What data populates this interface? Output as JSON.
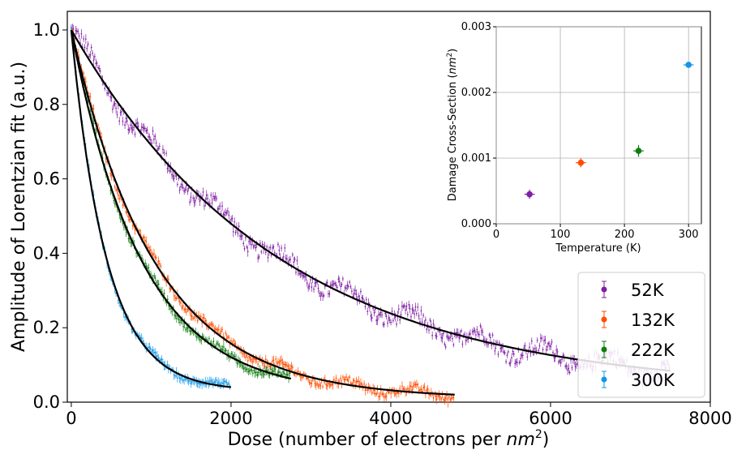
{
  "chart_data": [
    {
      "type": "scatter",
      "xlabel": "Dose (number of electrons per ",
      "xlabel_math": "nm",
      "xlabel_sup": "2",
      "xlabel_tail": ")",
      "ylabel": "Amplitude of Lorentzian fit (a.u.)",
      "xlim": [
        -50,
        8000
      ],
      "ylim": [
        0.0,
        1.05
      ],
      "xticks": [
        "0",
        "2000",
        "4000",
        "6000",
        "8000"
      ],
      "yticks": [
        "0.0",
        "0.2",
        "0.4",
        "0.6",
        "0.8",
        "1.0"
      ],
      "grid": false,
      "legend_position": "bottom-right",
      "fit_color": "#000000",
      "series": [
        {
          "name": "52K",
          "color": "#7f1fa3",
          "x_max": 7500,
          "decay_dose": 2600,
          "offset": 0.03,
          "noise": 0.03
        },
        {
          "name": "132K",
          "color": "#ff4d00",
          "x_max": 4800,
          "decay_dose": 1050,
          "offset": 0.01,
          "noise": 0.015
        },
        {
          "name": "222K",
          "color": "#117d11",
          "x_max": 2750,
          "decay_dose": 880,
          "offset": 0.02,
          "noise": 0.012
        },
        {
          "name": "300K",
          "color": "#1496e6",
          "x_max": 2000,
          "decay_dose": 440,
          "offset": 0.03,
          "noise": 0.01
        }
      ]
    },
    {
      "type": "scatter",
      "xlabel": "Temperature (K)",
      "ylabel": "Damage Cross-Section (",
      "ylabel_math": "nm",
      "ylabel_sup": "2",
      "ylabel_tail": ")",
      "xlim": [
        0,
        320
      ],
      "ylim": [
        0.0,
        0.003
      ],
      "xticks": [
        "0",
        "100",
        "200",
        "300"
      ],
      "yticks": [
        "0.000",
        "0.001",
        "0.002",
        "0.003"
      ],
      "grid": true,
      "points": [
        {
          "x": 52,
          "y": 0.00045,
          "yerr": 7e-05,
          "xerr": 8,
          "color": "#7f1fa3"
        },
        {
          "x": 132,
          "y": 0.00093,
          "yerr": 7e-05,
          "xerr": 8,
          "color": "#ff4d00"
        },
        {
          "x": 222,
          "y": 0.00111,
          "yerr": 9e-05,
          "xerr": 8,
          "color": "#117d11"
        },
        {
          "x": 300,
          "y": 0.00242,
          "yerr": 3e-05,
          "xerr": 8,
          "color": "#1496e6"
        }
      ]
    }
  ]
}
